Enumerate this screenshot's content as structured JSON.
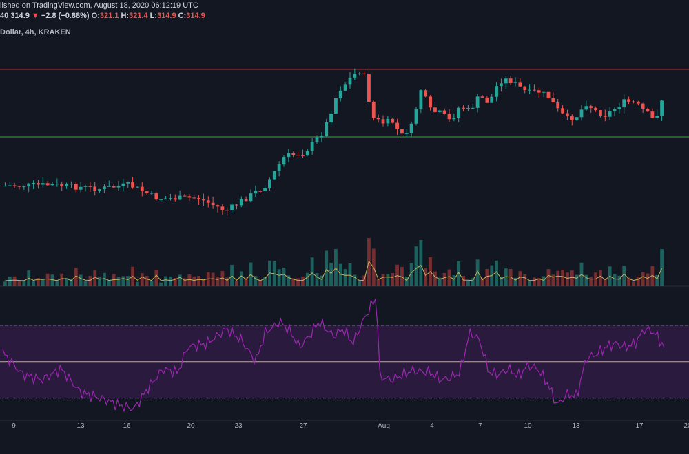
{
  "header": {
    "publish_text": "lished on TradingView.com, August 18, 2020 06:12:19 UTC",
    "ohlc_prefix": "40",
    "last_price": "314.9",
    "change_arrow": "▼",
    "change": "−2.8 (−0.88%)",
    "o_label": "O:",
    "o_value": "321.1",
    "h_label": "H:",
    "h_value": "321.4",
    "l_label": "L:",
    "l_value": "314.9",
    "c_label": "C:",
    "c_value": "314.9",
    "symbol_title": "Dollar, 4h, KRAKEN"
  },
  "colors": {
    "background": "#131722",
    "up": "#26a69a",
    "down": "#ef5350",
    "resistance_line": "#c62828",
    "support_line": "#43a047",
    "volume_ma": "#c8b45a",
    "rsi_line": "#9c27b0",
    "rsi_band": "#2a1a3d",
    "rsi_mid": "#c8b45a"
  },
  "chart_data": [
    {
      "type": "candlestick",
      "x_axis_ticks": [
        "9",
        "13",
        "16",
        "20",
        "23",
        "27",
        "Aug",
        "4",
        "7",
        "10",
        "13",
        "17",
        "20"
      ],
      "horizontal_lines": [
        {
          "color": "red",
          "level": "resistance"
        },
        {
          "color": "green",
          "level": "support"
        }
      ],
      "close_path": [
        [
          0,
          245
        ],
        [
          5,
          244
        ],
        [
          10,
          248
        ],
        [
          13,
          244
        ],
        [
          16,
          258
        ],
        [
          20,
          257
        ],
        [
          23,
          270
        ],
        [
          27,
          245
        ],
        [
          29,
          215
        ],
        [
          31,
          212
        ],
        [
          33,
          190
        ],
        [
          34.5,
          150
        ],
        [
          36,
          134
        ],
        [
          37,
          128
        ],
        [
          38,
          176
        ],
        [
          39,
          182
        ],
        [
          40,
          180
        ],
        [
          41,
          195
        ],
        [
          42,
          186
        ],
        [
          43,
          148
        ],
        [
          44,
          170
        ],
        [
          45,
          172
        ],
        [
          46,
          180
        ],
        [
          47,
          165
        ],
        [
          48,
          170
        ],
        [
          49,
          155
        ],
        [
          50,
          162
        ],
        [
          51,
          140
        ],
        [
          52,
          138
        ],
        [
          53,
          145
        ],
        [
          54,
          152
        ],
        [
          55,
          150
        ],
        [
          56,
          155
        ],
        [
          57,
          168
        ],
        [
          58,
          178
        ],
        [
          59,
          175
        ],
        [
          60,
          162
        ],
        [
          61,
          170
        ],
        [
          62,
          174
        ],
        [
          64,
          160
        ],
        [
          65,
          162
        ],
        [
          66,
          170
        ],
        [
          67,
          180
        ],
        [
          68,
          152
        ]
      ],
      "x_range": [
        0,
        68
      ],
      "y_range": [
        100,
        300
      ],
      "volume": {
        "has_moving_average": true
      },
      "candle_count": 140
    },
    {
      "type": "line",
      "name": "RSI",
      "has_band": true,
      "rsi_path": [
        [
          0,
          55
        ],
        [
          2,
          43
        ],
        [
          4,
          40
        ],
        [
          6,
          46
        ],
        [
          8,
          33
        ],
        [
          10,
          30
        ],
        [
          12,
          26
        ],
        [
          13.5,
          24
        ],
        [
          15,
          36
        ],
        [
          16.5,
          46
        ],
        [
          18,
          44
        ],
        [
          19,
          58
        ],
        [
          21,
          60
        ],
        [
          23,
          68
        ],
        [
          24.5,
          62
        ],
        [
          26,
          50
        ],
        [
          27,
          66
        ],
        [
          28.5,
          72
        ],
        [
          29.5,
          67
        ],
        [
          30.5,
          58
        ],
        [
          31.5,
          64
        ],
        [
          32.5,
          72
        ],
        [
          34,
          64
        ],
        [
          35,
          68
        ],
        [
          36,
          60
        ],
        [
          37,
          72
        ],
        [
          38,
          82
        ],
        [
          38.5,
          86
        ],
        [
          38.6,
          42
        ],
        [
          40,
          40
        ],
        [
          42,
          45
        ],
        [
          44,
          44
        ],
        [
          45,
          40
        ],
        [
          46,
          41
        ],
        [
          47,
          44
        ],
        [
          48,
          66
        ],
        [
          49,
          62
        ],
        [
          50,
          44
        ],
        [
          51,
          43
        ],
        [
          52,
          46
        ],
        [
          53,
          42
        ],
        [
          54,
          48
        ],
        [
          55,
          46
        ],
        [
          56,
          38
        ],
        [
          57,
          26
        ],
        [
          58,
          32
        ],
        [
          59,
          31
        ],
        [
          60,
          52
        ],
        [
          61,
          54
        ],
        [
          62,
          58
        ],
        [
          63,
          60
        ],
        [
          64,
          58
        ],
        [
          65,
          60
        ],
        [
          66,
          68
        ],
        [
          67,
          66
        ],
        [
          68,
          58
        ]
      ],
      "x_range": [
        0,
        68
      ],
      "y_range": [
        20,
        90
      ],
      "band": [
        30,
        70
      ],
      "mid": 50
    }
  ]
}
